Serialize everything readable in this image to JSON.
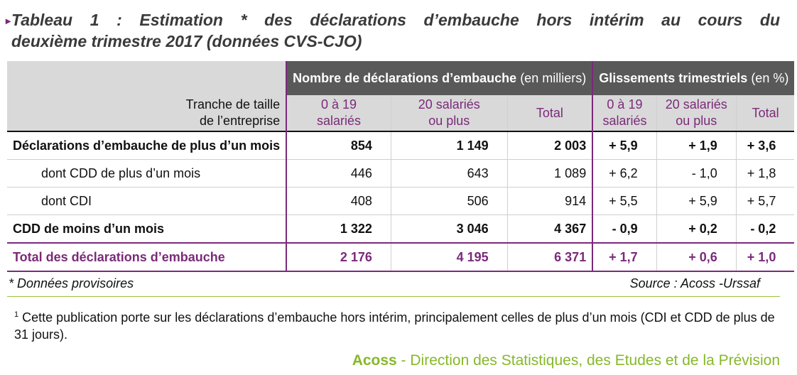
{
  "title": {
    "line1": "Tableau 1 : Estimation * des déclarations d’embauche hors intérim au cours du",
    "line2": "deuxième trimestre 2017 (données CVS-CJO)"
  },
  "table": {
    "group_headers": [
      {
        "bold": "Nombre de déclarations d’embauche",
        "normal": " (en milliers)"
      },
      {
        "bold": "Glissements trimestriels",
        "normal": " (en %)"
      }
    ],
    "corner_label": [
      "Tranche de taille",
      "de l’entreprise"
    ],
    "sub_headers": [
      [
        "0 à 19",
        "salariés"
      ],
      [
        "20 salariés",
        "ou plus"
      ],
      [
        "Total",
        ""
      ],
      [
        "0 à 19",
        "salariés"
      ],
      [
        "20 salariés",
        "ou plus"
      ],
      [
        "Total",
        ""
      ]
    ],
    "rows": [
      {
        "label": "Déclarations d’embauche de plus d’un mois",
        "cells": [
          "854",
          "1 149",
          "2 003",
          "+ 5,9",
          "+ 1,9",
          "+ 3,6"
        ]
      },
      {
        "label": "dont CDD de plus d’un mois",
        "cells": [
          "446",
          "643",
          "1 089",
          "+ 6,2",
          "- 1,0",
          "+ 1,8"
        ]
      },
      {
        "label": "dont CDI",
        "cells": [
          "408",
          "506",
          "914",
          "+ 5,5",
          "+ 5,9",
          "+ 5,7"
        ]
      },
      {
        "label": "CDD de moins d’un mois",
        "cells": [
          "1 322",
          "3 046",
          "4 367",
          "- 0,9",
          "+ 0,2",
          "- 0,2"
        ]
      },
      {
        "label": "Total des déclarations d’embauche",
        "cells": [
          "2 176",
          "4 195",
          "6 371",
          "+ 1,7",
          "+ 0,6",
          "+ 1,0"
        ]
      }
    ]
  },
  "footnotes": {
    "provisional": "* Données provisoires",
    "source": "Source : Acoss -Urssaf",
    "note_marker": "1",
    "note": "Cette publication porte sur les déclarations d’embauche hors intérim, principalement celles de plus d’un mois (CDI et CDD de plus de 31 jours)."
  },
  "branding": {
    "org": "Acoss",
    "division": " - Direction des Statistiques, des Etudes et de la Prévision"
  },
  "colors": {
    "accent": "#7b2a7a",
    "header_dark": "#595959",
    "header_light": "#d9d9d9",
    "brand_green": "#86b829"
  }
}
